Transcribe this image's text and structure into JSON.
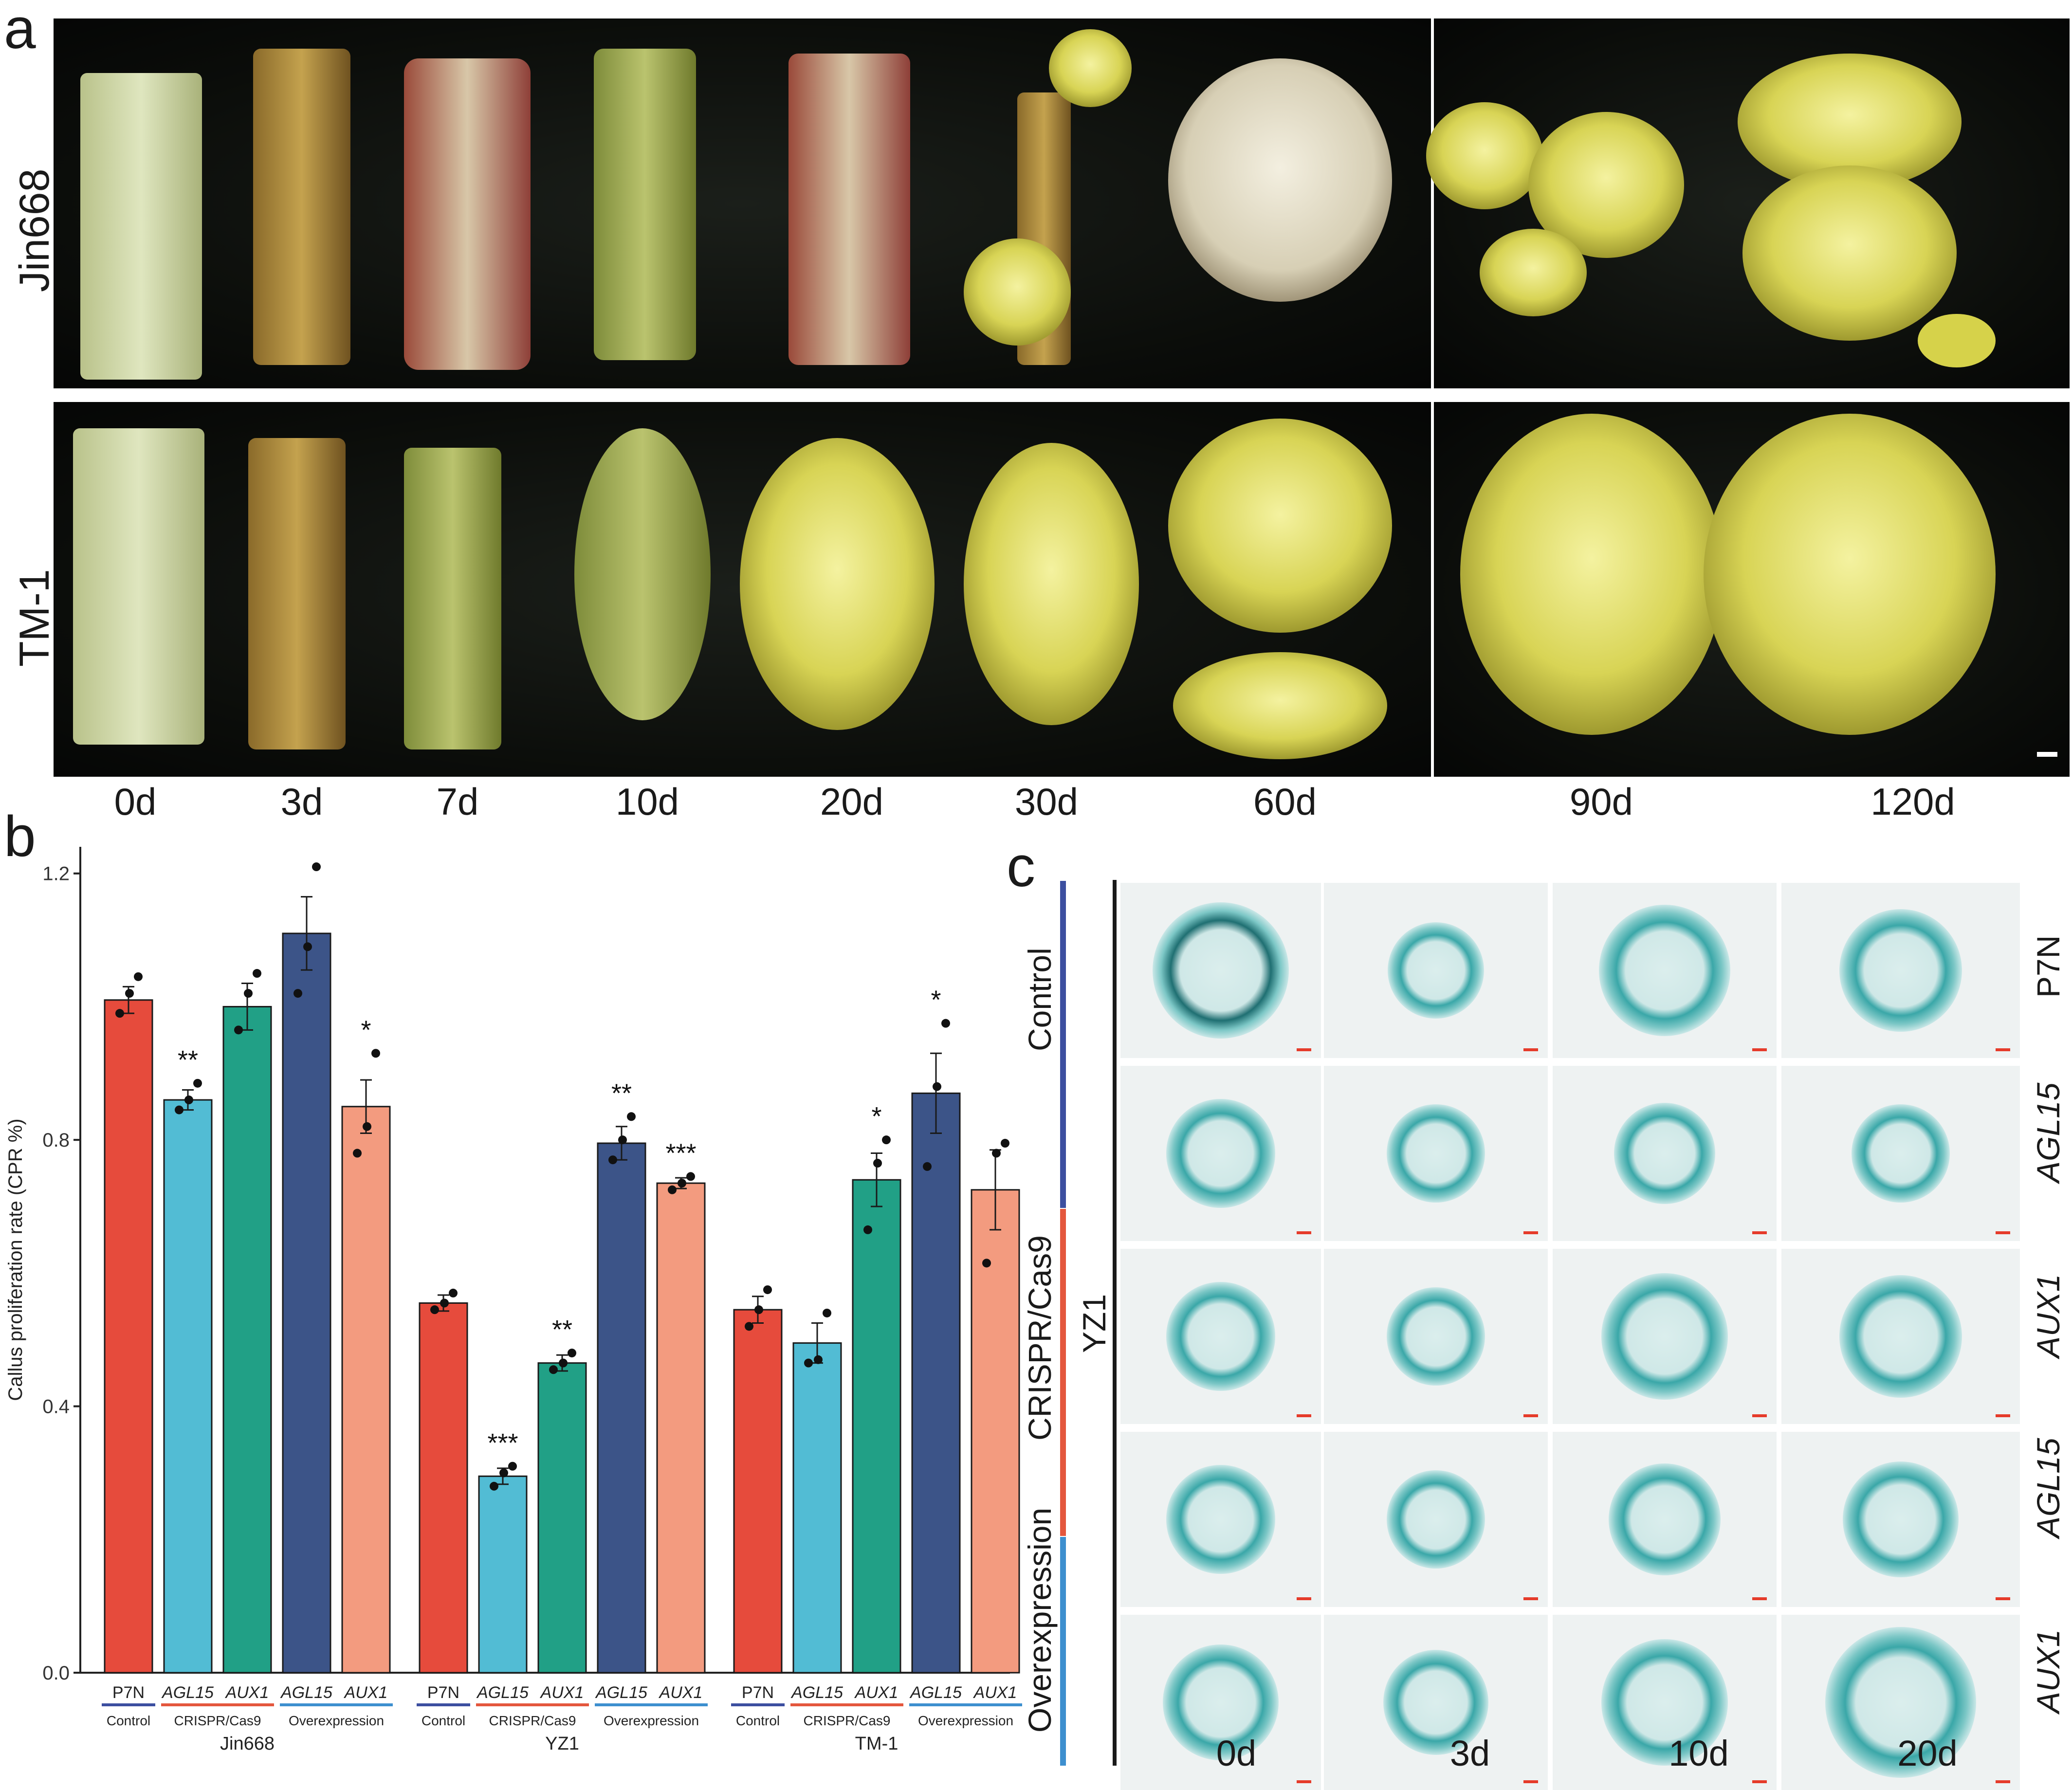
{
  "panel_a": {
    "letter": "a",
    "rows": [
      "Jin668",
      "TM-1"
    ],
    "days": [
      "0d",
      "3d",
      "7d",
      "10d",
      "20d",
      "30d",
      "60d",
      "90d",
      "120d"
    ]
  },
  "panel_b": {
    "letter": "b",
    "chart_data": {
      "type": "bar",
      "ylabel": "Callus proliferation rate (CPR %)",
      "ylim": [
        0,
        1.24
      ],
      "yticks": [
        "0.0",
        "0.4",
        "0.8",
        "1.2"
      ],
      "grid": false,
      "groups": [
        {
          "name": "Jin668",
          "bars": [
            {
              "label": "P7N",
              "italic": false,
              "value": 1.01,
              "se": 0.02,
              "sig": "",
              "points": [
                0.99,
                1.02,
                1.045
              ],
              "color": "#e64b3c"
            },
            {
              "label": "AGL15",
              "italic": true,
              "value": 0.86,
              "se": 0.015,
              "sig": "**",
              "points": [
                0.845,
                0.86,
                0.885
              ],
              "color": "#52bcd4"
            },
            {
              "label": "AUX1",
              "italic": true,
              "value": 1.0,
              "se": 0.035,
              "sig": "",
              "points": [
                0.965,
                1.02,
                1.05
              ],
              "color": "#21a086"
            },
            {
              "label": "AGL15",
              "italic": true,
              "value": 1.11,
              "se": 0.055,
              "sig": "",
              "points": [
                1.02,
                1.09,
                1.21
              ],
              "color": "#3c5488"
            },
            {
              "label": "AUX1",
              "italic": true,
              "value": 0.85,
              "se": 0.04,
              "sig": "*",
              "points": [
                0.78,
                0.82,
                0.93
              ],
              "color": "#f39b7f"
            }
          ]
        },
        {
          "name": "YZ1",
          "bars": [
            {
              "label": "P7N",
              "italic": false,
              "value": 0.555,
              "se": 0.012,
              "sig": "",
              "points": [
                0.545,
                0.555,
                0.57
              ],
              "color": "#e64b3c"
            },
            {
              "label": "AGL15",
              "italic": true,
              "value": 0.295,
              "se": 0.012,
              "sig": "***",
              "points": [
                0.28,
                0.3,
                0.31
              ],
              "color": "#52bcd4"
            },
            {
              "label": "AUX1",
              "italic": true,
              "value": 0.465,
              "se": 0.012,
              "sig": "**",
              "points": [
                0.455,
                0.465,
                0.48
              ],
              "color": "#21a086"
            },
            {
              "label": "AGL15",
              "italic": true,
              "value": 0.795,
              "se": 0.025,
              "sig": "**",
              "points": [
                0.77,
                0.8,
                0.835
              ],
              "color": "#3c5488"
            },
            {
              "label": "AUX1",
              "italic": true,
              "value": 0.735,
              "se": 0.008,
              "sig": "***",
              "points": [
                0.725,
                0.735,
                0.745
              ],
              "color": "#f39b7f"
            }
          ]
        },
        {
          "name": "TM-1",
          "bars": [
            {
              "label": "P7N",
              "italic": false,
              "value": 0.545,
              "se": 0.02,
              "sig": "",
              "points": [
                0.52,
                0.545,
                0.575
              ],
              "color": "#e64b3c"
            },
            {
              "label": "AGL15",
              "italic": true,
              "value": 0.495,
              "se": 0.03,
              "sig": "",
              "points": [
                0.465,
                0.47,
                0.54
              ],
              "color": "#52bcd4"
            },
            {
              "label": "AUX1",
              "italic": true,
              "value": 0.74,
              "se": 0.04,
              "sig": "*",
              "points": [
                0.665,
                0.765,
                0.8
              ],
              "color": "#21a086"
            },
            {
              "label": "AGL15",
              "italic": true,
              "value": 0.87,
              "se": 0.06,
              "sig": "*",
              "points": [
                0.76,
                0.88,
                0.975
              ],
              "color": "#3c5488"
            },
            {
              "label": "AUX1",
              "italic": true,
              "value": 0.725,
              "se": 0.06,
              "sig": "",
              "points": [
                0.615,
                0.78,
                0.795
              ],
              "color": "#f39b7f"
            }
          ]
        }
      ],
      "subgroups": [
        {
          "label": "Control",
          "color": "#3c4fa0",
          "span": [
            0,
            0
          ]
        },
        {
          "label": "CRISPR/Cas9",
          "color": "#e4573d",
          "span": [
            1,
            2
          ]
        },
        {
          "label": "Overexpression",
          "color": "#3d8fcf",
          "span": [
            3,
            4
          ]
        }
      ]
    }
  },
  "panel_c": {
    "letter": "c",
    "group_labels": [
      "Control",
      "CRISPR/Cas9",
      "Overexpression"
    ],
    "group_colors": [
      "#3c4fa0",
      "#e4573d",
      "#3d8fcf"
    ],
    "side_label": "YZ1",
    "row_names": [
      {
        "text": "P7N",
        "italic": false
      },
      {
        "text": "AGL15",
        "italic": true
      },
      {
        "text": "AUX1",
        "italic": true
      },
      {
        "text": "AGL15",
        "italic": true
      },
      {
        "text": "AUX1",
        "italic": true
      }
    ],
    "days": [
      "0d",
      "3d",
      "10d",
      "20d"
    ]
  }
}
